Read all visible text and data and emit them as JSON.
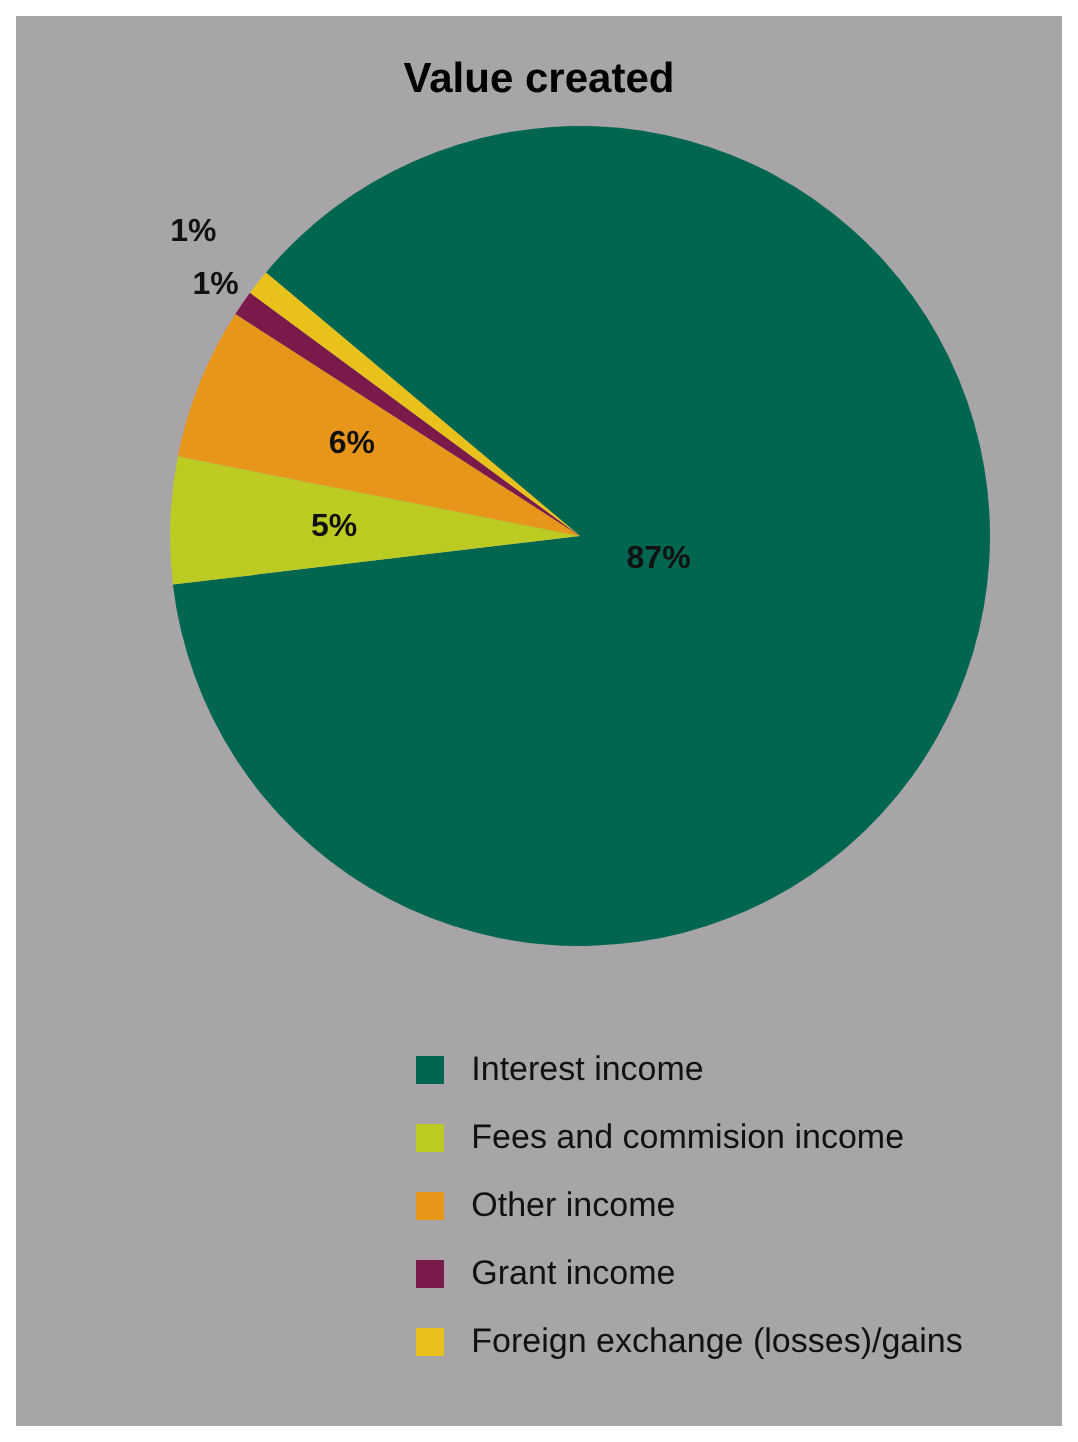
{
  "chart_data": {
    "type": "pie",
    "title": "Value created",
    "categories": [
      "Interest income",
      "Fees and commision income",
      "Other income",
      "Grant income",
      "Foreign exchange (losses)/gains"
    ],
    "values": [
      87,
      5,
      6,
      1,
      1
    ],
    "value_labels": [
      "87%",
      "5%",
      "6%",
      "1%",
      "1%"
    ],
    "colors": [
      "#00664f",
      "#bccb22",
      "#e8961a",
      "#7a1a4a",
      "#e8c21a"
    ],
    "legend": "bottom"
  }
}
